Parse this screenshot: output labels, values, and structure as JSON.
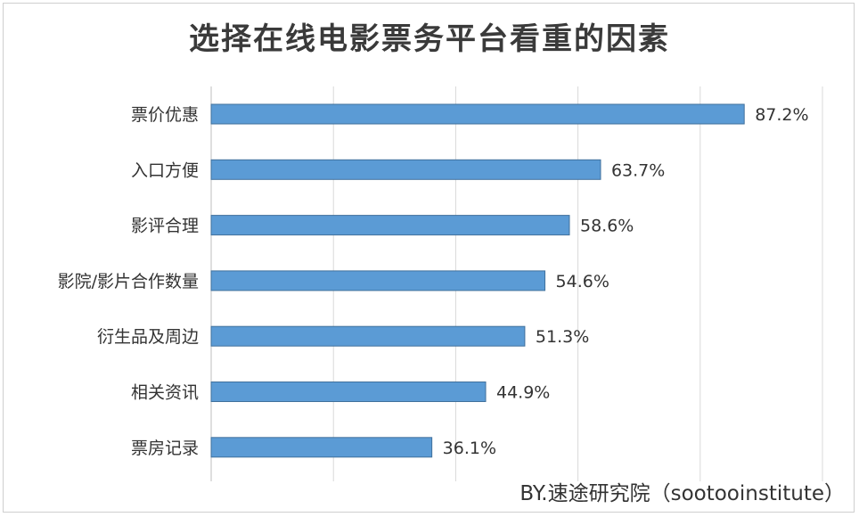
{
  "chart_data": {
    "type": "bar",
    "orientation": "horizontal",
    "title": "选择在线电影票务平台看重的因素",
    "categories": [
      "票价优惠",
      "入口方便",
      "影评合理",
      "影院/影片合作数量",
      "衍生品及周边",
      "相关资讯",
      "票房记录"
    ],
    "values": [
      87.2,
      63.7,
      58.6,
      54.6,
      51.3,
      44.9,
      36.1
    ],
    "value_labels": [
      "87.2%",
      "63.7%",
      "58.6%",
      "54.6%",
      "51.3%",
      "44.9%",
      "36.1%"
    ],
    "xlim": [
      0,
      100
    ],
    "grid": true,
    "bar_color": "#5b9bd5",
    "bar_edge_color": "#41719c"
  },
  "credit": "BY.速途研究院（sootooinstitute）"
}
